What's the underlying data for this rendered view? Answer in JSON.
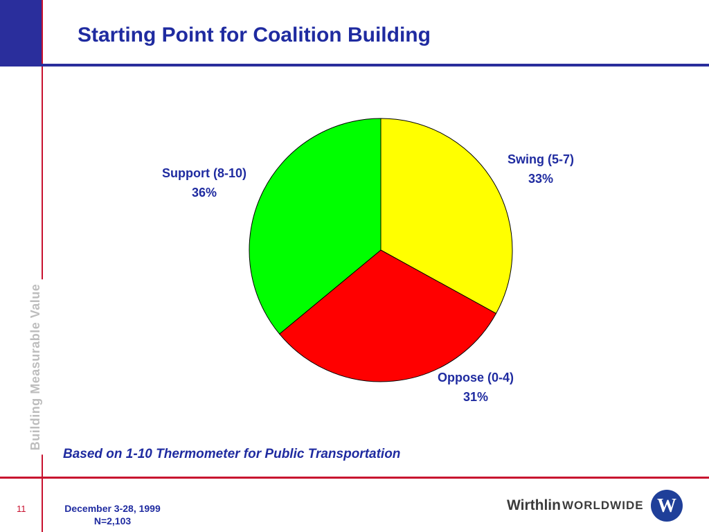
{
  "slide": {
    "title": "Starting Point for Coalition Building",
    "side_label": "Building Measurable Value",
    "footnote": "Based on 1-10 Thermometer for Public Transportation",
    "page_number": "11",
    "date": "December 3-28, 1999",
    "sample": "N=2,103",
    "logo_bold": "Wirthlin",
    "logo_caps": "WORLDWIDE",
    "logo_letter": "W"
  },
  "colors": {
    "navy": "#1f2ba0",
    "red_rule": "#c8102e",
    "block": "#2a2e9c"
  },
  "chart_data": {
    "type": "pie",
    "start": "12 o'clock, clockwise",
    "slices": [
      {
        "label": "Swing (5-7)",
        "value": 33,
        "value_label": "33%",
        "color": "#ffff00"
      },
      {
        "label": "Oppose (0-4)",
        "value": 31,
        "value_label": "31%",
        "color": "#ff0000"
      },
      {
        "label": "Support (8-10)",
        "value": 36,
        "value_label": "36%",
        "color": "#00ff00"
      }
    ]
  }
}
